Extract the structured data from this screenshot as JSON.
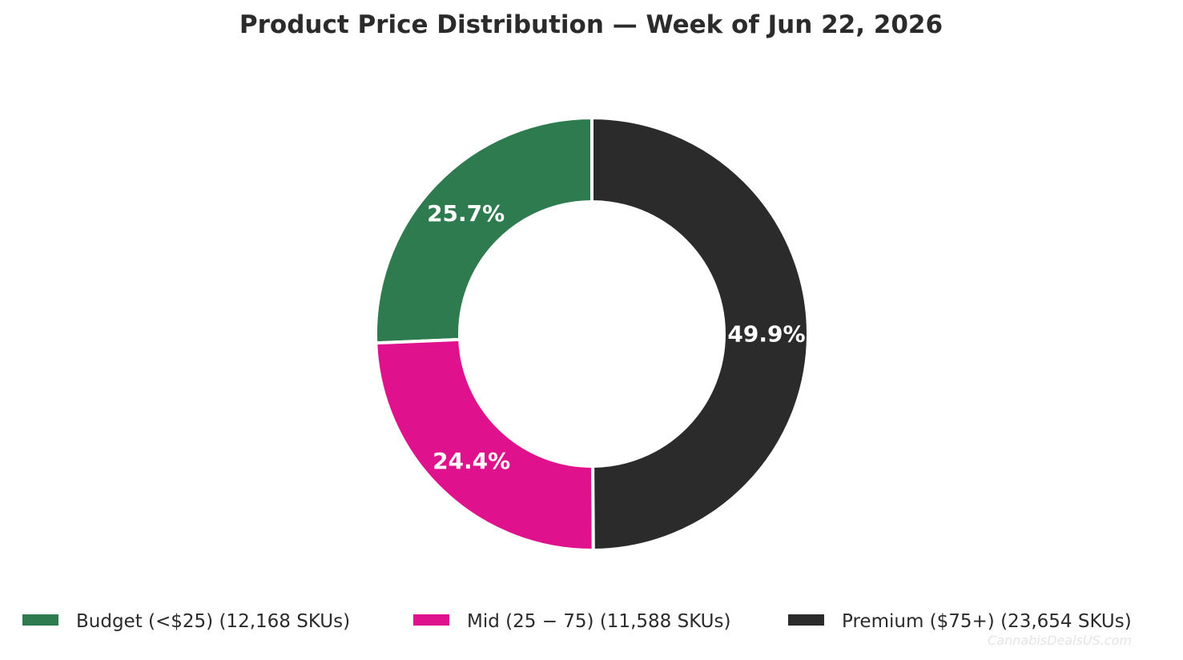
{
  "chart_data": {
    "type": "pie",
    "title": "Product Price Distribution — Week of Jun 22, 2026",
    "donut": true,
    "start_angle_deg": 90,
    "direction": "counterclockwise",
    "slices": [
      {
        "label": "Budget (<$25)",
        "value": 12168,
        "percent_label": "25.7%",
        "legend_label": "Budget (<$25)  (12,168 SKUs)",
        "color": "#2e7b4f"
      },
      {
        "label": "Mid (25 − 75)",
        "value": 11588,
        "percent_label": "24.4%",
        "legend_label": "Mid (25 − 75)  (11,588 SKUs)",
        "color": "#e0118c"
      },
      {
        "label": "Premium ($75+)",
        "value": 23654,
        "percent_label": "49.9%",
        "legend_label": "Premium ($75+)  (23,654 SKUs)",
        "color": "#2b2b2b"
      }
    ],
    "legend_position": "bottom",
    "watermark": "CannabisDealsUS.com"
  }
}
